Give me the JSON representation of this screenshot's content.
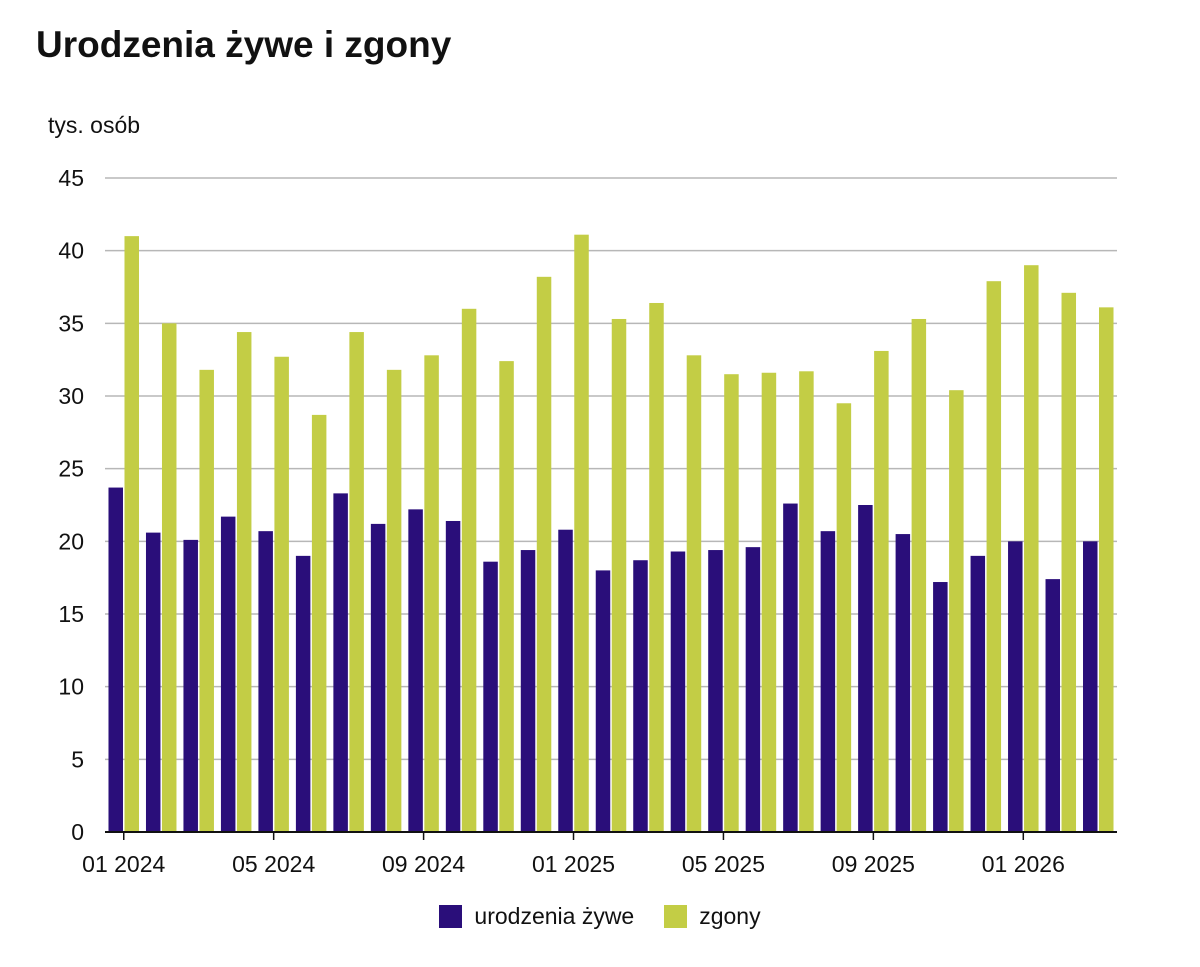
{
  "chart_data": {
    "type": "bar",
    "title": "Urodzenia żywe i zgony",
    "ylabel": "tys. osób",
    "xlabel": "",
    "ylim": [
      0,
      45
    ],
    "yticks": [
      0,
      5,
      10,
      15,
      20,
      25,
      30,
      35,
      40,
      45
    ],
    "grid": true,
    "legend_position": "bottom",
    "categories": [
      "01 2024",
      "02 2024",
      "03 2024",
      "04 2024",
      "05 2024",
      "06 2024",
      "07 2024",
      "08 2024",
      "09 2024",
      "10 2024",
      "11 2024",
      "12 2024",
      "01 2025",
      "02 2025",
      "03 2025",
      "04 2025",
      "05 2025",
      "06 2025",
      "07 2025",
      "08 2025",
      "09 2025",
      "10 2025",
      "11 2025",
      "12 2025",
      "01 2026",
      "02 2026",
      "03 2026"
    ],
    "xtick_labels": [
      "01 2024",
      "05 2024",
      "09 2024",
      "01 2025",
      "05 2025",
      "09 2025",
      "01 2026"
    ],
    "series": [
      {
        "name": "urodzenia żywe",
        "color": "#2a0e7a",
        "values": [
          23.7,
          20.6,
          20.1,
          21.7,
          20.7,
          19.0,
          23.3,
          21.2,
          22.2,
          21.4,
          18.6,
          19.4,
          20.8,
          18.0,
          18.7,
          19.3,
          19.4,
          19.6,
          22.6,
          20.7,
          22.5,
          20.5,
          17.2,
          19.0,
          20.0,
          17.4,
          20.0
        ]
      },
      {
        "name": "zgony",
        "color": "#c3cd45",
        "values": [
          41.0,
          35.0,
          31.8,
          34.4,
          32.7,
          28.7,
          34.4,
          31.8,
          32.8,
          36.0,
          32.4,
          38.2,
          41.1,
          35.3,
          36.4,
          32.8,
          31.5,
          31.6,
          31.7,
          29.5,
          33.1,
          35.3,
          30.4,
          37.9,
          39.0,
          37.1,
          36.1
        ]
      }
    ]
  }
}
